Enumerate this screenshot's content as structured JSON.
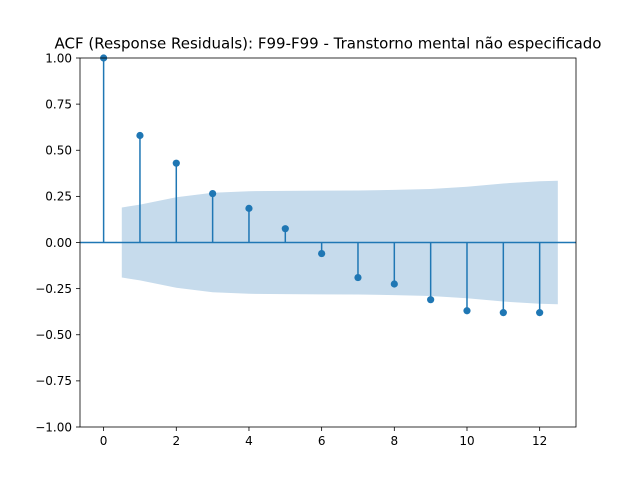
{
  "chart_data": {
    "type": "stem",
    "title": "ACF (Response Residuals): F99-F99 - Transtorno mental não especificado",
    "xlabel": "",
    "ylabel": "",
    "xlim": [
      -0.65,
      13.0
    ],
    "ylim": [
      -1.0,
      1.0
    ],
    "x_ticks": [
      0,
      2,
      4,
      6,
      8,
      10,
      12
    ],
    "x_tick_labels": [
      "0",
      "2",
      "4",
      "6",
      "8",
      "10",
      "12"
    ],
    "y_ticks": [
      -1.0,
      -0.75,
      -0.5,
      -0.25,
      0.0,
      0.25,
      0.5,
      0.75,
      1.0
    ],
    "y_tick_labels": [
      "−1.00",
      "−0.75",
      "−0.50",
      "−0.25",
      "0.00",
      "0.25",
      "0.50",
      "0.75",
      "1.00"
    ],
    "lags": [
      0,
      1,
      2,
      3,
      4,
      5,
      6,
      7,
      8,
      9,
      10,
      11,
      12
    ],
    "acf": [
      1.0,
      0.58,
      0.43,
      0.265,
      0.185,
      0.075,
      -0.06,
      -0.19,
      -0.225,
      -0.31,
      -0.37,
      -0.38,
      -0.38
    ],
    "confidence_band": {
      "x": [
        0.5,
        1,
        2,
        3,
        4,
        5,
        6,
        7,
        8,
        9,
        10,
        11,
        12,
        12.5
      ],
      "upper": [
        0.19,
        0.205,
        0.245,
        0.27,
        0.278,
        0.28,
        0.281,
        0.282,
        0.285,
        0.29,
        0.302,
        0.32,
        0.332,
        0.335
      ],
      "lower": [
        -0.19,
        -0.205,
        -0.245,
        -0.27,
        -0.278,
        -0.28,
        -0.281,
        -0.282,
        -0.285,
        -0.29,
        -0.302,
        -0.32,
        -0.332,
        -0.335
      ]
    },
    "grid": false,
    "colors": {
      "stem": "#1f77b4",
      "marker": "#1f77b4",
      "band": "#c6dbec",
      "zero_line": "#1f77b4"
    }
  }
}
